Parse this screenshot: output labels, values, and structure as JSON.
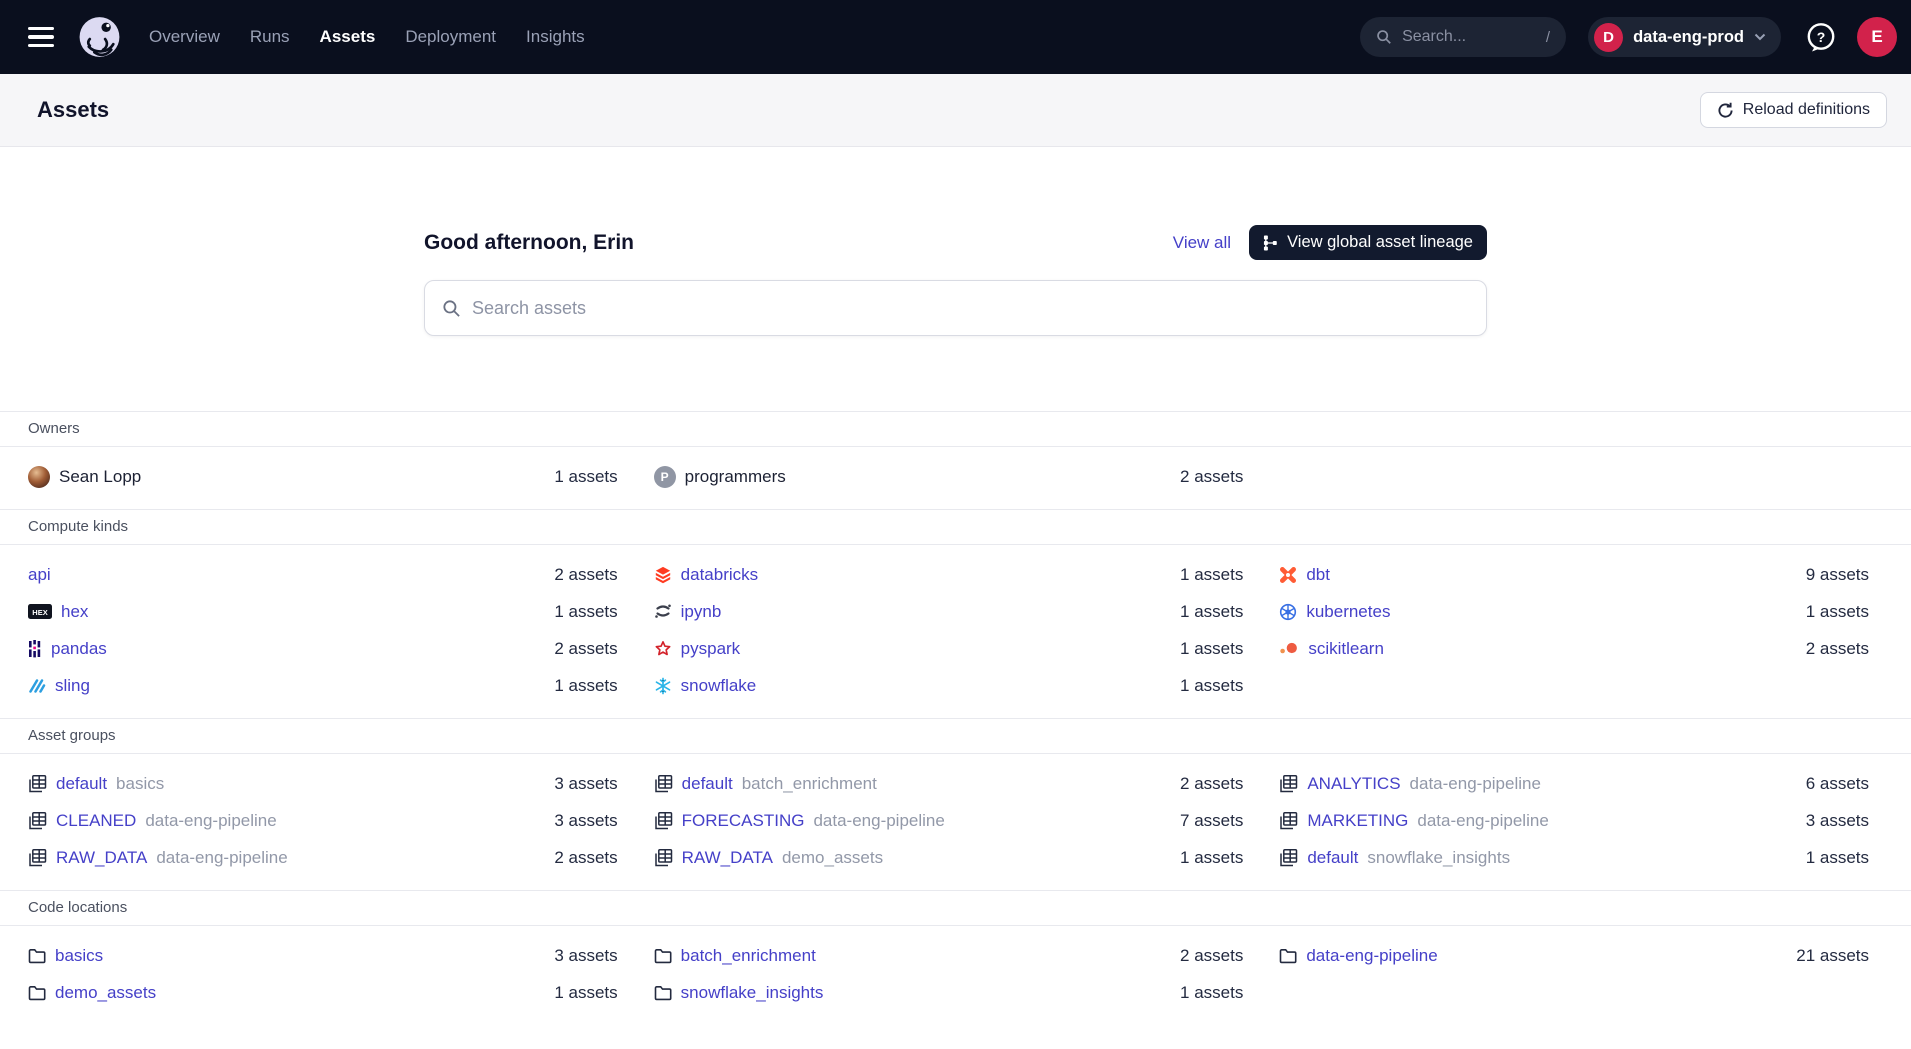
{
  "colors": {
    "nav_bg": "#0a0f1e",
    "accent_link": "#4540c8",
    "badge_red": "#d2224b",
    "button_dark": "#121a2e"
  },
  "nav": {
    "items": [
      {
        "label": "Overview",
        "active": false
      },
      {
        "label": "Runs",
        "active": false
      },
      {
        "label": "Assets",
        "active": true
      },
      {
        "label": "Deployment",
        "active": false
      },
      {
        "label": "Insights",
        "active": false
      }
    ],
    "search": {
      "placeholder": "Search...",
      "shortcut": "/"
    },
    "deployment": {
      "badge": "D",
      "label": "data-eng-prod"
    },
    "avatar": "E"
  },
  "header": {
    "title": "Assets",
    "reload_label": "Reload definitions"
  },
  "hero": {
    "greeting": "Good afternoon, Erin",
    "view_all": "View all",
    "lineage_button": "View global asset lineage",
    "search_placeholder": "Search assets"
  },
  "sections": [
    {
      "title": "Owners",
      "plain": true,
      "items": [
        {
          "icon": "photo",
          "name": "Sean Lopp",
          "count": "1 assets"
        },
        {
          "icon": "letter",
          "badge": "P",
          "name": "programmers",
          "count": "2 assets"
        },
        null
      ]
    },
    {
      "title": "Compute kinds",
      "plain": false,
      "items": [
        {
          "icon": null,
          "name": "api",
          "count": "2 assets"
        },
        {
          "icon": "databricks",
          "name": "databricks",
          "count": "1 assets"
        },
        {
          "icon": "dbt",
          "name": "dbt",
          "count": "9 assets"
        },
        {
          "icon": "hex",
          "name": "hex",
          "count": "1 assets"
        },
        {
          "icon": "ipynb",
          "name": "ipynb",
          "count": "1 assets"
        },
        {
          "icon": "kubernetes",
          "name": "kubernetes",
          "count": "1 assets"
        },
        {
          "icon": "pandas",
          "name": "pandas",
          "count": "2 assets"
        },
        {
          "icon": "pyspark",
          "name": "pyspark",
          "count": "1 assets"
        },
        {
          "icon": "scikitlearn",
          "name": "scikitlearn",
          "count": "2 assets"
        },
        {
          "icon": "sling",
          "name": "sling",
          "count": "1 assets"
        },
        {
          "icon": "snowflake",
          "name": "snowflake",
          "count": "1 assets"
        },
        null
      ]
    },
    {
      "title": "Asset groups",
      "plain": false,
      "items": [
        {
          "icon": "asset-group",
          "name": "default",
          "suffix": "basics",
          "count": "3 assets"
        },
        {
          "icon": "asset-group",
          "name": "default",
          "suffix": "batch_enrichment",
          "count": "2 assets"
        },
        {
          "icon": "asset-group",
          "name": "ANALYTICS",
          "suffix": "data-eng-pipeline",
          "count": "6 assets"
        },
        {
          "icon": "asset-group",
          "name": "CLEANED",
          "suffix": "data-eng-pipeline",
          "count": "3 assets"
        },
        {
          "icon": "asset-group",
          "name": "FORECASTING",
          "suffix": "data-eng-pipeline",
          "count": "7 assets"
        },
        {
          "icon": "asset-group",
          "name": "MARKETING",
          "suffix": "data-eng-pipeline",
          "count": "3 assets"
        },
        {
          "icon": "asset-group",
          "name": "RAW_DATA",
          "suffix": "data-eng-pipeline",
          "count": "2 assets"
        },
        {
          "icon": "asset-group",
          "name": "RAW_DATA",
          "suffix": "demo_assets",
          "count": "1 assets"
        },
        {
          "icon": "asset-group",
          "name": "default",
          "suffix": "snowflake_insights",
          "count": "1 assets"
        }
      ]
    },
    {
      "title": "Code locations",
      "plain": false,
      "items": [
        {
          "icon": "folder",
          "name": "basics",
          "count": "3 assets"
        },
        {
          "icon": "folder",
          "name": "batch_enrichment",
          "count": "2 assets"
        },
        {
          "icon": "folder",
          "name": "data-eng-pipeline",
          "count": "21 assets"
        },
        {
          "icon": "folder",
          "name": "demo_assets",
          "count": "1 assets"
        },
        {
          "icon": "folder",
          "name": "snowflake_insights",
          "count": "1 assets"
        },
        null
      ]
    }
  ]
}
